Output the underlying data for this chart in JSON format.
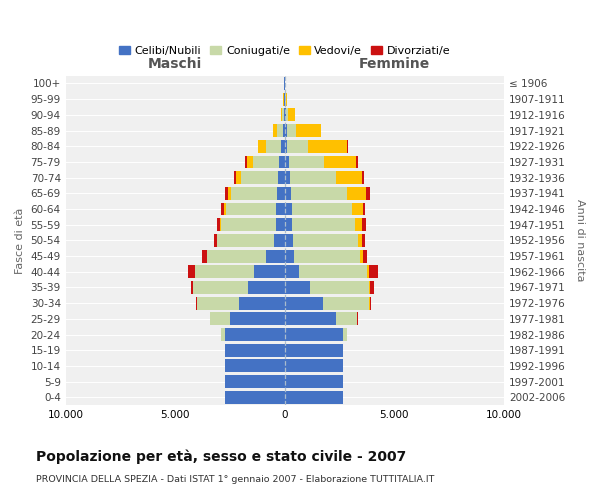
{
  "age_groups": [
    "0-4",
    "5-9",
    "10-14",
    "15-19",
    "20-24",
    "25-29",
    "30-34",
    "35-39",
    "40-44",
    "45-49",
    "50-54",
    "55-59",
    "60-64",
    "65-69",
    "70-74",
    "75-79",
    "80-84",
    "85-89",
    "90-94",
    "95-99",
    "100+"
  ],
  "birth_years": [
    "2002-2006",
    "1997-2001",
    "1992-1996",
    "1987-1991",
    "1982-1986",
    "1977-1981",
    "1972-1976",
    "1967-1971",
    "1962-1966",
    "1957-1961",
    "1952-1956",
    "1947-1951",
    "1942-1946",
    "1937-1941",
    "1932-1936",
    "1927-1931",
    "1922-1926",
    "1917-1921",
    "1912-1916",
    "1907-1911",
    "≤ 1906"
  ],
  "maschi": {
    "celibi": [
      2750,
      2750,
      2750,
      2750,
      2750,
      2500,
      2100,
      1700,
      1400,
      850,
      480,
      420,
      390,
      360,
      310,
      250,
      170,
      70,
      40,
      25,
      15
    ],
    "coniugati": [
      0,
      0,
      0,
      0,
      150,
      900,
      1900,
      2500,
      2700,
      2700,
      2600,
      2500,
      2300,
      2100,
      1700,
      1200,
      700,
      280,
      70,
      25,
      8
    ],
    "vedovi": [
      0,
      0,
      0,
      0,
      0,
      0,
      5,
      5,
      10,
      20,
      30,
      50,
      80,
      150,
      200,
      280,
      350,
      200,
      60,
      20,
      5
    ],
    "divorziati": [
      0,
      0,
      0,
      0,
      10,
      20,
      50,
      80,
      300,
      200,
      100,
      120,
      130,
      120,
      100,
      80,
      20,
      10,
      0,
      0,
      0
    ]
  },
  "femmine": {
    "nubili": [
      2650,
      2650,
      2650,
      2650,
      2650,
      2350,
      1750,
      1150,
      650,
      420,
      380,
      340,
      310,
      270,
      220,
      170,
      100,
      80,
      50,
      25,
      15
    ],
    "coniugate": [
      0,
      0,
      0,
      0,
      200,
      950,
      2100,
      2700,
      3100,
      3000,
      2950,
      2850,
      2750,
      2550,
      2100,
      1600,
      950,
      450,
      80,
      25,
      8
    ],
    "vedove": [
      0,
      0,
      0,
      0,
      0,
      10,
      20,
      50,
      100,
      150,
      200,
      350,
      500,
      900,
      1200,
      1500,
      1800,
      1100,
      350,
      50,
      5
    ],
    "divorziate": [
      0,
      0,
      0,
      0,
      10,
      20,
      80,
      150,
      400,
      200,
      150,
      150,
      120,
      150,
      100,
      80,
      30,
      10,
      0,
      0,
      0
    ]
  },
  "colors": {
    "celibi": "#4472c4",
    "coniugati": "#c8d9a8",
    "vedovi": "#ffc000",
    "divorziati": "#cc1111"
  },
  "xlim": 10000,
  "title": "Popolazione per età, sesso e stato civile - 2007",
  "subtitle": "PROVINCIA DELLA SPEZIA - Dati ISTAT 1° gennaio 2007 - Elaborazione TUTTITALIA.IT",
  "xlabel_left": "Maschi",
  "xlabel_right": "Femmine",
  "ylabel_left": "Fasce di età",
  "ylabel_right": "Anni di nascita",
  "legend_labels": [
    "Celibi/Nubili",
    "Coniugati/e",
    "Vedovi/e",
    "Divorziati/e"
  ],
  "bg_color": "#ffffff",
  "plot_bg": "#f0f0f0",
  "grid_color": "#ffffff"
}
